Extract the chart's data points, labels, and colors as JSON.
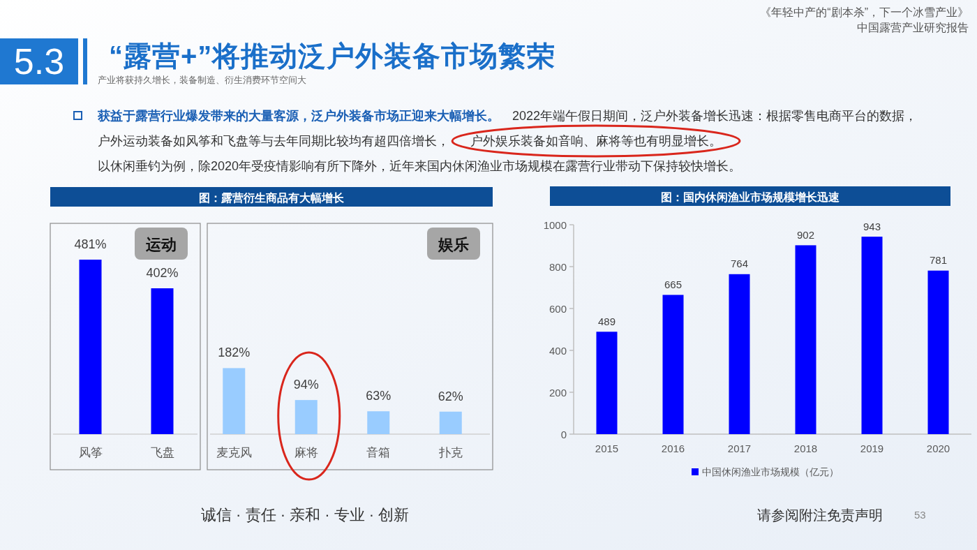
{
  "chart_data": [
    {
      "type": "other",
      "title": "“露营+”将推动泛户外装备市场繁荣",
      "subtitle": "产业将获持久增长，装备制造、衍生消费环节空间大",
      "annotations": [
        "5.3",
        "《年轻中产的“剧本杀”，下一个冰雪产业》",
        "中国露营产业研究报告",
        "获益于露营行业爆发带来的大量客源，泛户外装备市场正迎来大幅增长。",
        "2022年端午假日期间，泛户外装备增长迅速：根据零售电商平台的数据，",
        "户外运动装备如风筝和飞盘等与去年同期比较均有超四倍增长，",
        "户外娱乐装备如音响、麻将等也有明显增长。",
        "以休闲垂钓为例，除2020年受疫情影响有所下降外，近年来国内休闲渔业市场规模在露营行业带动下保持较快增长。",
        "诚信 · 责任 · 亲和 · 专业 · 创新",
        "请参阅附注免责声明",
        "53"
      ]
    },
    {
      "type": "bar",
      "title": "图：露营衍生商品有大幅增长",
      "categories": [
        "风筝",
        "飞盘"
      ],
      "values": [
        481,
        402
      ],
      "color": "#0000ff",
      "value_labels": [
        "481%",
        "402%"
      ],
      "annotations": [
        "运动"
      ]
    },
    {
      "type": "bar",
      "categories": [
        "麦克风",
        "麻将",
        "音箱",
        "扑克"
      ],
      "values": [
        182,
        94,
        63,
        62
      ],
      "color": "#99ccff",
      "value_labels": [
        "182%",
        "94%",
        "63%",
        "62%"
      ],
      "annotations": [
        "娱乐"
      ]
    },
    {
      "type": "bar",
      "title": "图：国内休闲渔业市场规模增长迅速",
      "categories": [
        "2015",
        "2016",
        "2017",
        "2018",
        "2019",
        "2020"
      ],
      "series": [
        {
          "name": "中国休闲渔业市场规模（亿元）",
          "color": "#0000ff",
          "values": [
            489,
            665,
            764,
            902,
            943,
            781
          ]
        }
      ],
      "ylim": [
        0,
        1000
      ],
      "yticks": [
        0,
        200,
        400,
        600,
        800,
        1000
      ],
      "data_labels": true,
      "legend": "bottom"
    }
  ]
}
